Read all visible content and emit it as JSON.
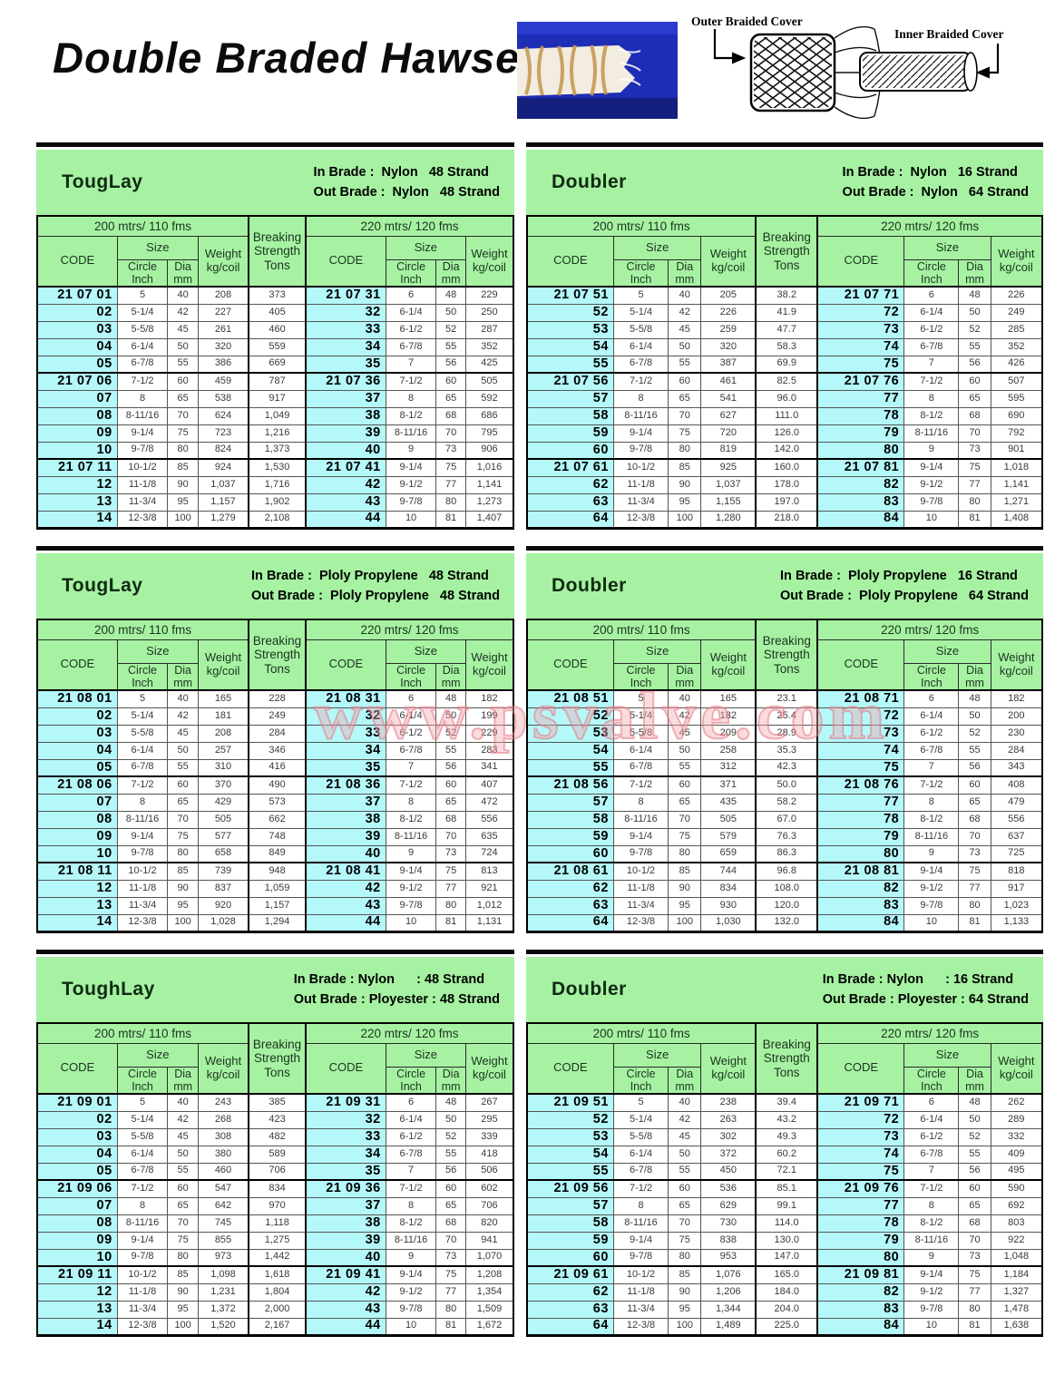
{
  "page": {
    "title": "Double Braded Hawser",
    "watermark": "www.psvalve.com"
  },
  "diagram": {
    "outer_label": "Outer Braided Cover",
    "inner_label": "Inner Braided Cover"
  },
  "table_common": {
    "left_span": "200 mtrs/ 110 fms",
    "right_span": "220 mtrs/ 120 fms",
    "code": "CODE",
    "size": "Size",
    "weight": "Weight",
    "kg_coil": "kg/coil",
    "breaking_l1": "Breaking",
    "breaking_l2": "Strength",
    "breaking_l3": "Tons",
    "circle_l1": "Circle",
    "circle_l2": "Inch",
    "dia_l1": "Dia",
    "dia_l2": "mm"
  },
  "colors": {
    "band_green": "#a6f2a2",
    "code_cyan": "#b5f8fa",
    "watermark_pink": "#e47884"
  },
  "tables": [
    {
      "title": "TougLay",
      "in_line": "In Brade :  Nylon   48 Strand",
      "out_line": "Out Brade :  Nylon   48 Strand",
      "rows": [
        [
          "21 07 01",
          "5",
          "40",
          "208",
          "373",
          "21 07 31",
          "6",
          "48",
          "229"
        ],
        [
          "02",
          "5-1/4",
          "42",
          "227",
          "405",
          "32",
          "6-1/4",
          "50",
          "250"
        ],
        [
          "03",
          "5-5/8",
          "45",
          "261",
          "460",
          "33",
          "6-1/2",
          "52",
          "287"
        ],
        [
          "04",
          "6-1/4",
          "50",
          "320",
          "559",
          "34",
          "6-7/8",
          "55",
          "352"
        ],
        [
          "05",
          "6-7/8",
          "55",
          "386",
          "669",
          "35",
          "7",
          "56",
          "425"
        ],
        [
          "21 07 06",
          "7-1/2",
          "60",
          "459",
          "787",
          "21 07 36",
          "7-1/2",
          "60",
          "505"
        ],
        [
          "07",
          "8",
          "65",
          "538",
          "917",
          "37",
          "8",
          "65",
          "592"
        ],
        [
          "08",
          "8-11/16",
          "70",
          "624",
          "1,049",
          "38",
          "8-1/2",
          "68",
          "686"
        ],
        [
          "09",
          "9-1/4",
          "75",
          "723",
          "1,216",
          "39",
          "8-11/16",
          "70",
          "795"
        ],
        [
          "10",
          "9-7/8",
          "80",
          "824",
          "1,373",
          "40",
          "9",
          "73",
          "906"
        ],
        [
          "21 07 11",
          "10-1/2",
          "85",
          "924",
          "1,530",
          "21 07 41",
          "9-1/4",
          "75",
          "1,016"
        ],
        [
          "12",
          "11-1/8",
          "90",
          "1,037",
          "1,716",
          "42",
          "9-1/2",
          "77",
          "1,141"
        ],
        [
          "13",
          "11-3/4",
          "95",
          "1,157",
          "1,902",
          "43",
          "9-7/8",
          "80",
          "1,273"
        ],
        [
          "14",
          "12-3/8",
          "100",
          "1,279",
          "2,108",
          "44",
          "10",
          "81",
          "1,407"
        ]
      ]
    },
    {
      "title": "Doubler",
      "in_line": "In Brade :  Nylon   16 Strand",
      "out_line": "Out Brade :  Nylon   64 Strand",
      "rows": [
        [
          "21 07 51",
          "5",
          "40",
          "205",
          "38.2",
          "21 07 71",
          "6",
          "48",
          "226"
        ],
        [
          "52",
          "5-1/4",
          "42",
          "226",
          "41.9",
          "72",
          "6-1/4",
          "50",
          "249"
        ],
        [
          "53",
          "5-5/8",
          "45",
          "259",
          "47.7",
          "73",
          "6-1/2",
          "52",
          "285"
        ],
        [
          "54",
          "6-1/4",
          "50",
          "320",
          "58.3",
          "74",
          "6-7/8",
          "55",
          "352"
        ],
        [
          "55",
          "6-7/8",
          "55",
          "387",
          "69.9",
          "75",
          "7",
          "56",
          "426"
        ],
        [
          "21 07 56",
          "7-1/2",
          "60",
          "461",
          "82.5",
          "21 07 76",
          "7-1/2",
          "60",
          "507"
        ],
        [
          "57",
          "8",
          "65",
          "541",
          "96.0",
          "77",
          "8",
          "65",
          "595"
        ],
        [
          "58",
          "8-11/16",
          "70",
          "627",
          "111.0",
          "78",
          "8-1/2",
          "68",
          "690"
        ],
        [
          "59",
          "9-1/4",
          "75",
          "720",
          "126.0",
          "79",
          "8-11/16",
          "70",
          "792"
        ],
        [
          "60",
          "9-7/8",
          "80",
          "819",
          "142.0",
          "80",
          "9",
          "73",
          "901"
        ],
        [
          "21 07 61",
          "10-1/2",
          "85",
          "925",
          "160.0",
          "21 07 81",
          "9-1/4",
          "75",
          "1,018"
        ],
        [
          "62",
          "11-1/8",
          "90",
          "1,037",
          "178.0",
          "82",
          "9-1/2",
          "77",
          "1,141"
        ],
        [
          "63",
          "11-3/4",
          "95",
          "1,155",
          "197.0",
          "83",
          "9-7/8",
          "80",
          "1,271"
        ],
        [
          "64",
          "12-3/8",
          "100",
          "1,280",
          "218.0",
          "84",
          "10",
          "81",
          "1,408"
        ]
      ]
    },
    {
      "title": "TougLay",
      "in_line": "In Brade :  Ploly Propylene   48 Strand",
      "out_line": "Out Brade :  Ploly Propylene   48 Strand",
      "rows": [
        [
          "21 08 01",
          "5",
          "40",
          "165",
          "228",
          "21 08 31",
          "6",
          "48",
          "182"
        ],
        [
          "02",
          "5-1/4",
          "42",
          "181",
          "249",
          "32",
          "6-1/4",
          "50",
          "199"
        ],
        [
          "03",
          "5-5/8",
          "45",
          "208",
          "284",
          "33",
          "6-1/2",
          "52",
          "229"
        ],
        [
          "04",
          "6-1/4",
          "50",
          "257",
          "346",
          "34",
          "6-7/8",
          "55",
          "283"
        ],
        [
          "05",
          "6-7/8",
          "55",
          "310",
          "416",
          "35",
          "7",
          "56",
          "341"
        ],
        [
          "21 08 06",
          "7-1/2",
          "60",
          "370",
          "490",
          "21 08 36",
          "7-1/2",
          "60",
          "407"
        ],
        [
          "07",
          "8",
          "65",
          "429",
          "573",
          "37",
          "8",
          "65",
          "472"
        ],
        [
          "08",
          "8-11/16",
          "70",
          "505",
          "662",
          "38",
          "8-1/2",
          "68",
          "556"
        ],
        [
          "09",
          "9-1/4",
          "75",
          "577",
          "748",
          "39",
          "8-11/16",
          "70",
          "635"
        ],
        [
          "10",
          "9-7/8",
          "80",
          "658",
          "849",
          "40",
          "9",
          "73",
          "724"
        ],
        [
          "21 08 11",
          "10-1/2",
          "85",
          "739",
          "948",
          "21 08 41",
          "9-1/4",
          "75",
          "813"
        ],
        [
          "12",
          "11-1/8",
          "90",
          "837",
          "1,059",
          "42",
          "9-1/2",
          "77",
          "921"
        ],
        [
          "13",
          "11-3/4",
          "95",
          "920",
          "1,157",
          "43",
          "9-7/8",
          "80",
          "1,012"
        ],
        [
          "14",
          "12-3/8",
          "100",
          "1,028",
          "1,294",
          "44",
          "10",
          "81",
          "1,131"
        ]
      ]
    },
    {
      "title": "Doubler",
      "in_line": "In Brade :  Ploly Propylene   16 Strand",
      "out_line": "Out Brade :  Ploly Propylene   64 Strand",
      "rows": [
        [
          "21 08 51",
          "5",
          "40",
          "165",
          "23.1",
          "21 08 71",
          "6",
          "48",
          "182"
        ],
        [
          "52",
          "5-1/4",
          "42",
          "182",
          "25.4",
          "72",
          "6-1/4",
          "50",
          "200"
        ],
        [
          "53",
          "5-5/8",
          "45",
          "209",
          "28.9",
          "73",
          "6-1/2",
          "52",
          "230"
        ],
        [
          "54",
          "6-1/4",
          "50",
          "258",
          "35.3",
          "74",
          "6-7/8",
          "55",
          "284"
        ],
        [
          "55",
          "6-7/8",
          "55",
          "312",
          "42.3",
          "75",
          "7",
          "56",
          "343"
        ],
        [
          "21 08 56",
          "7-1/2",
          "60",
          "371",
          "50.0",
          "21 08 76",
          "7-1/2",
          "60",
          "408"
        ],
        [
          "57",
          "8",
          "65",
          "435",
          "58.2",
          "77",
          "8",
          "65",
          "479"
        ],
        [
          "58",
          "8-11/16",
          "70",
          "505",
          "67.0",
          "78",
          "8-1/2",
          "68",
          "556"
        ],
        [
          "59",
          "9-1/4",
          "75",
          "579",
          "76.3",
          "79",
          "8-11/16",
          "70",
          "637"
        ],
        [
          "60",
          "9-7/8",
          "80",
          "659",
          "86.3",
          "80",
          "9",
          "73",
          "725"
        ],
        [
          "21 08 61",
          "10-1/2",
          "85",
          "744",
          "96.8",
          "21 08 81",
          "9-1/4",
          "75",
          "818"
        ],
        [
          "62",
          "11-1/8",
          "90",
          "834",
          "108.0",
          "82",
          "9-1/2",
          "77",
          "917"
        ],
        [
          "63",
          "11-3/4",
          "95",
          "930",
          "120.0",
          "83",
          "9-7/8",
          "80",
          "1,023"
        ],
        [
          "64",
          "12-3/8",
          "100",
          "1,030",
          "132.0",
          "84",
          "10",
          "81",
          "1,133"
        ]
      ]
    },
    {
      "title": "ToughLay",
      "in_line": "In Brade : Nylon      : 48 Strand",
      "out_line": "Out Brade : Ployester : 48 Strand",
      "rows": [
        [
          "21 09 01",
          "5",
          "40",
          "243",
          "385",
          "21 09 31",
          "6",
          "48",
          "267"
        ],
        [
          "02",
          "5-1/4",
          "42",
          "268",
          "423",
          "32",
          "6-1/4",
          "50",
          "295"
        ],
        [
          "03",
          "5-5/8",
          "45",
          "308",
          "482",
          "33",
          "6-1/2",
          "52",
          "339"
        ],
        [
          "04",
          "6-1/4",
          "50",
          "380",
          "589",
          "34",
          "6-7/8",
          "55",
          "418"
        ],
        [
          "05",
          "6-7/8",
          "55",
          "460",
          "706",
          "35",
          "7",
          "56",
          "506"
        ],
        [
          "21 09 06",
          "7-1/2",
          "60",
          "547",
          "834",
          "21 09 36",
          "7-1/2",
          "60",
          "602"
        ],
        [
          "07",
          "8",
          "65",
          "642",
          "970",
          "37",
          "8",
          "65",
          "706"
        ],
        [
          "08",
          "8-11/16",
          "70",
          "745",
          "1,118",
          "38",
          "8-1/2",
          "68",
          "820"
        ],
        [
          "09",
          "9-1/4",
          "75",
          "855",
          "1,275",
          "39",
          "8-11/16",
          "70",
          "941"
        ],
        [
          "10",
          "9-7/8",
          "80",
          "973",
          "1,442",
          "40",
          "9",
          "73",
          "1,070"
        ],
        [
          "21 09 11",
          "10-1/2",
          "85",
          "1,098",
          "1,618",
          "21 09 41",
          "9-1/4",
          "75",
          "1,208"
        ],
        [
          "12",
          "11-1/8",
          "90",
          "1,231",
          "1,804",
          "42",
          "9-1/2",
          "77",
          "1,354"
        ],
        [
          "13",
          "11-3/4",
          "95",
          "1,372",
          "2,000",
          "43",
          "9-7/8",
          "80",
          "1,509"
        ],
        [
          "14",
          "12-3/8",
          "100",
          "1,520",
          "2,167",
          "44",
          "10",
          "81",
          "1,672"
        ]
      ]
    },
    {
      "title": "Doubler",
      "in_line": "In Brade : Nylon      : 16 Strand",
      "out_line": "Out Brade : Ployester : 64 Strand",
      "rows": [
        [
          "21 09 51",
          "5",
          "40",
          "238",
          "39.4",
          "21 09 71",
          "6",
          "48",
          "262"
        ],
        [
          "52",
          "5-1/4",
          "42",
          "263",
          "43.2",
          "72",
          "6-1/4",
          "50",
          "289"
        ],
        [
          "53",
          "5-5/8",
          "45",
          "302",
          "49.3",
          "73",
          "6-1/2",
          "52",
          "332"
        ],
        [
          "54",
          "6-1/4",
          "50",
          "372",
          "60.2",
          "74",
          "6-7/8",
          "55",
          "409"
        ],
        [
          "55",
          "6-7/8",
          "55",
          "450",
          "72.1",
          "75",
          "7",
          "56",
          "495"
        ],
        [
          "21 09 56",
          "7-1/2",
          "60",
          "536",
          "85.1",
          "21 09 76",
          "7-1/2",
          "60",
          "590"
        ],
        [
          "57",
          "8",
          "65",
          "629",
          "99.1",
          "77",
          "8",
          "65",
          "692"
        ],
        [
          "58",
          "8-11/16",
          "70",
          "730",
          "114.0",
          "78",
          "8-1/2",
          "68",
          "803"
        ],
        [
          "59",
          "9-1/4",
          "75",
          "838",
          "130.0",
          "79",
          "8-11/16",
          "70",
          "922"
        ],
        [
          "60",
          "9-7/8",
          "80",
          "953",
          "147.0",
          "80",
          "9",
          "73",
          "1,048"
        ],
        [
          "21 09 61",
          "10-1/2",
          "85",
          "1,076",
          "165.0",
          "21 09 81",
          "9-1/4",
          "75",
          "1,184"
        ],
        [
          "62",
          "11-1/8",
          "90",
          "1,206",
          "184.0",
          "82",
          "9-1/2",
          "77",
          "1,327"
        ],
        [
          "63",
          "11-3/4",
          "95",
          "1,344",
          "204.0",
          "83",
          "9-7/8",
          "80",
          "1,478"
        ],
        [
          "64",
          "12-3/8",
          "100",
          "1,489",
          "225.0",
          "84",
          "10",
          "81",
          "1,638"
        ]
      ]
    }
  ]
}
